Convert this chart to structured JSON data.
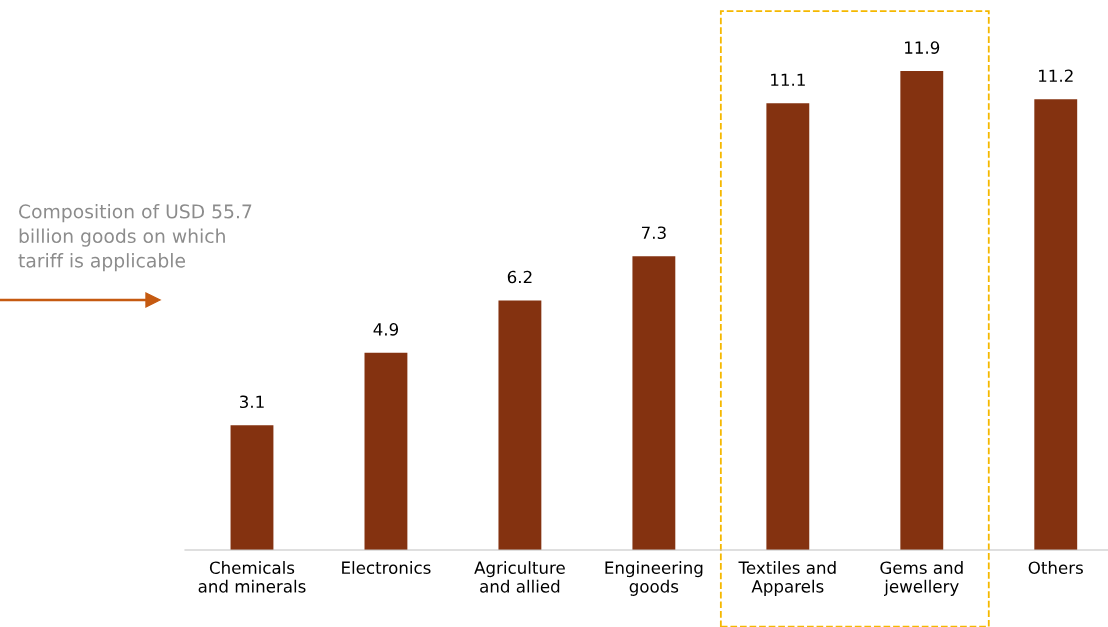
{
  "chart_data": {
    "type": "bar",
    "categories": [
      "Chemicals\nand minerals",
      "Electronics",
      "Agriculture\nand allied",
      "Engineering\ngoods",
      "Textiles and\nApparels",
      "Gems and\njewellery",
      "Others"
    ],
    "values": [
      3.1,
      4.9,
      6.2,
      7.3,
      11.1,
      11.9,
      11.2
    ],
    "color": "#843210",
    "tick_labels": "x",
    "data_labels": true,
    "grid": false,
    "legend": false,
    "annotations": [
      "Composition of USD 55.7\nbillion goods on which\ntariff is applicable"
    ]
  }
}
